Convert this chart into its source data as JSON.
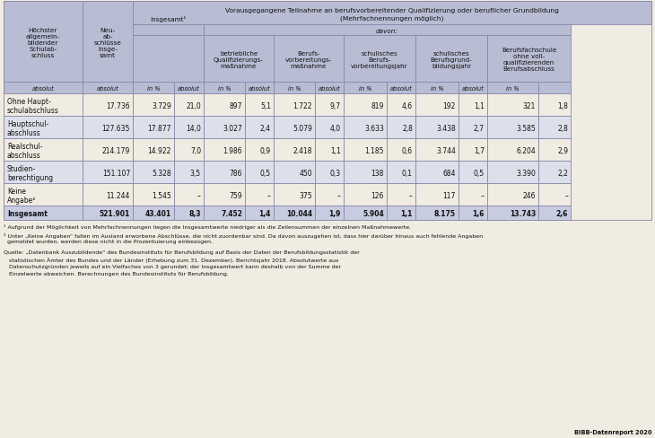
{
  "title_main": "Vorausgegangene Teilnahme an berufsvorbereitender Qualifizierung oder beruflicher Grundbildung",
  "title_sub": "(Mehrfachnennungen möglich)",
  "davon_label": "davon:",
  "col0_label": "Höchster\nallgemein-\nbildender\nSchulab-\nschluss",
  "col1_label": "Neu-\nab-\nschlüsse\ninsge-\nsamt",
  "insgesamt_label": "Insgesamt¹",
  "colhdr_labels": [
    "betriebliche\nQualifizierungs-\nmaßnahme",
    "Berufs-\nvorbereitungs-\nmaßnahme",
    "schulisches\nBerufs-\nvorbereitungsjahr",
    "schulisches\nBerufsgrund-\nbildungsjahr",
    "Berufsfachschule\nohne voll-\nqualifizierenden\nBerufsabschluss"
  ],
  "subheader": [
    "absolut",
    "absolut",
    "in %",
    "absolut",
    "in %",
    "absolut",
    "in %",
    "absolut",
    "in %",
    "absolut",
    "in %",
    "absolut",
    "in %"
  ],
  "rows": [
    {
      "label": "Ohne Haupt-\nschulabschluss",
      "values": [
        "17.736",
        "3.729",
        "21,0",
        "897",
        "5,1",
        "1.722",
        "9,7",
        "819",
        "4,6",
        "192",
        "1,1",
        "321",
        "1,8"
      ]
    },
    {
      "label": "Hauptschul-\nabschluss",
      "values": [
        "127.635",
        "17.877",
        "14,0",
        "3.027",
        "2,4",
        "5.079",
        "4,0",
        "3.633",
        "2,8",
        "3.438",
        "2,7",
        "3.585",
        "2,8"
      ]
    },
    {
      "label": "Realschul-\nabschluss",
      "values": [
        "214.179",
        "14.922",
        "7,0",
        "1.986",
        "0,9",
        "2.418",
        "1,1",
        "1.185",
        "0,6",
        "3.744",
        "1,7",
        "6.204",
        "2,9"
      ]
    },
    {
      "label": "Studien-\nberechtigung",
      "values": [
        "151.107",
        "5.328",
        "3,5",
        "786",
        "0,5",
        "450",
        "0,3",
        "138",
        "0,1",
        "684",
        "0,5",
        "3.390",
        "2,2"
      ]
    },
    {
      "label": "Keine\nAngabe²",
      "values": [
        "11.244",
        "1.545",
        "–",
        "759",
        "–",
        "375",
        "–",
        "126",
        "–",
        "117",
        "–",
        "246",
        "–"
      ]
    }
  ],
  "total_row": {
    "label": "Insgesamt",
    "values": [
      "521.901",
      "43.401",
      "8,3",
      "7.452",
      "1,4",
      "10.044",
      "1,9",
      "5.904",
      "1,1",
      "8.175",
      "1,6",
      "13.743",
      "2,6"
    ]
  },
  "footnote1": "¹ Aufgrund der Möglichkeit von Mehrfachnennungen liegen die Insgesamtwerte niedriger als die Zeilensummen der einzelnen Maßnahmewerte.",
  "footnote2": "² Unter „Keine Angaben“ fallen im Ausland erworbene Abschlüsse, die nicht zuordenbar sind. Da davon auszugehen ist, dass hier darüber hinaus auch fehlende Angaben\n  gemeldet wurden, werden diese nicht in die Prozentuierung einbezogen.",
  "source_line1": "Quelle: „Datenbank Auszubildende“ des Bundesinstituts für Berufsbildung auf Basis der Daten der Berufsbildungsstatistik der",
  "source_line2": "   statistischen Ämter des Bundes und der Länder (Erhebung zum 31. Dezember), Berichtsjahr 2018. Absolutwerte aus",
  "source_line3": "   Datenschutzgründen jeweils auf ein Vielfaches von 3 gerundet; der Insgesamtwert kann deshalb von der Summe der",
  "source_line4": "   Einzelwerte abweichen. Berechnungen des Bundesinstituts für Berufsbildung.",
  "bibb": "BIBB-Datenreport 2020",
  "bg_color": "#f0ece2",
  "hdr_color": "#b8bdd4",
  "alt_row_color": "#dde0ea",
  "total_row_color": "#c8cce0",
  "border_color": "#8888aa",
  "text_color": "#111111"
}
